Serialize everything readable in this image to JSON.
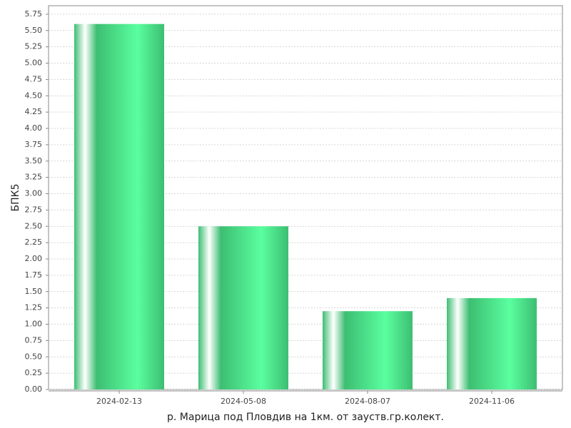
{
  "chart_data": {
    "type": "bar",
    "x_label": "р. Марица под Пловдив на 1км. от зауств.гр.колект.",
    "y_label": "БПК5",
    "categories": [
      "2024-02-13",
      "2024-05-08",
      "2024-08-07",
      "2024-11-06"
    ],
    "values": [
      5.6,
      2.5,
      1.2,
      1.4
    ],
    "color": "#3dbe72",
    "ylim": [
      0,
      5.88
    ],
    "yticks": [
      {
        "value": 0,
        "label": "0.00"
      },
      {
        "value": 0.25,
        "label": "0.25"
      },
      {
        "value": 0.5,
        "label": "0.50"
      },
      {
        "value": 0.75,
        "label": "0.75"
      },
      {
        "value": 1,
        "label": "1.00"
      },
      {
        "value": 1.25,
        "label": "1.25"
      },
      {
        "value": 1.5,
        "label": "1.50"
      },
      {
        "value": 1.75,
        "label": "1.75"
      },
      {
        "value": 2,
        "label": "2.00"
      },
      {
        "value": 2.25,
        "label": "2.25"
      },
      {
        "value": 2.5,
        "label": "2.50"
      },
      {
        "value": 2.75,
        "label": "2.75"
      },
      {
        "value": 3,
        "label": "3.00"
      },
      {
        "value": 3.25,
        "label": "3.25"
      },
      {
        "value": 3.5,
        "label": "3.50"
      },
      {
        "value": 3.75,
        "label": "3.75"
      },
      {
        "value": 4,
        "label": "4.00"
      },
      {
        "value": 4.25,
        "label": "4.25"
      },
      {
        "value": 4.5,
        "label": "4.50"
      },
      {
        "value": 4.75,
        "label": "4.75"
      },
      {
        "value": 5,
        "label": "5.00"
      },
      {
        "value": 5.25,
        "label": "5.25"
      },
      {
        "value": 5.5,
        "label": "5.50"
      },
      {
        "value": 5.75,
        "label": "5.75"
      }
    ],
    "grid": true
  }
}
